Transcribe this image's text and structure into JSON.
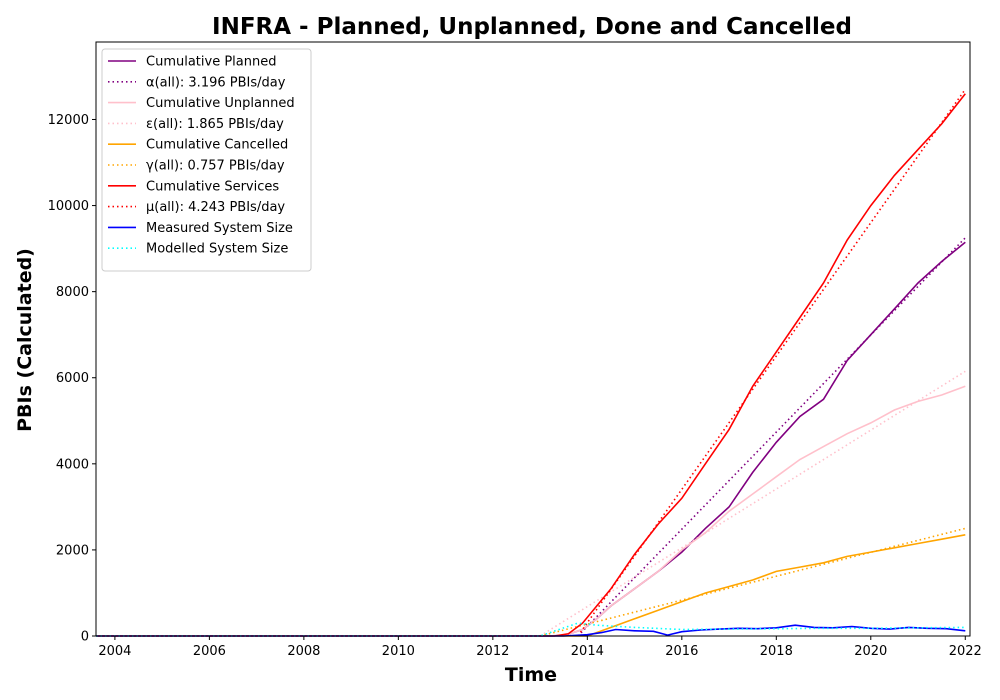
{
  "chart_data": {
    "type": "line",
    "title": "INFRA - Planned, Unplanned, Done  and Cancelled",
    "xlabel": "Time",
    "ylabel": "PBIs (Calculated)",
    "xlim": [
      2003.6,
      2022.1
    ],
    "ylim": [
      0,
      13800
    ],
    "x_ticks": [
      "2004",
      "2006",
      "2008",
      "2010",
      "2012",
      "2014",
      "2016",
      "2018",
      "2020",
      "2022"
    ],
    "y_ticks": [
      "0",
      "2000",
      "4000",
      "6000",
      "8000",
      "10000",
      "12000"
    ],
    "grid": false,
    "legend_position": "upper-left",
    "series": [
      {
        "name": "Cumulative Planned",
        "color": "#800080",
        "style": "solid",
        "x": [
          2003.6,
          2013.0,
          2013.5,
          2013.9,
          2014.2,
          2014.5,
          2015.0,
          2015.5,
          2016.0,
          2016.5,
          2017.0,
          2017.5,
          2018.0,
          2018.5,
          2019.0,
          2019.5,
          2020.0,
          2020.5,
          2021.0,
          2021.5,
          2022.0
        ],
        "y": [
          0,
          0,
          10,
          150,
          400,
          700,
          1100,
          1500,
          1950,
          2500,
          3000,
          3800,
          4500,
          5100,
          5500,
          6400,
          7000,
          7600,
          8200,
          8700,
          9150
        ]
      },
      {
        "name": "α(all): 3.196 PBIs/day",
        "color": "#800080",
        "style": "dotted",
        "x": [
          2013.8,
          2022.0
        ],
        "y": [
          0,
          9250
        ]
      },
      {
        "name": "Cumulative Unplanned",
        "color": "#ffc0cb",
        "style": "solid",
        "x": [
          2003.6,
          2013.0,
          2013.5,
          2013.9,
          2014.2,
          2014.5,
          2015.0,
          2015.5,
          2016.0,
          2016.5,
          2017.0,
          2017.5,
          2018.0,
          2018.5,
          2019.0,
          2019.5,
          2020.0,
          2020.5,
          2021.0,
          2021.5,
          2022.0
        ],
        "y": [
          0,
          0,
          10,
          150,
          400,
          700,
          1100,
          1500,
          2000,
          2400,
          2900,
          3300,
          3700,
          4100,
          4400,
          4700,
          4950,
          5250,
          5450,
          5600,
          5800
        ]
      },
      {
        "name": "ε(all): 1.865 PBIs/day",
        "color": "#ffc0cb",
        "style": "dotted",
        "x": [
          2013.0,
          2022.0
        ],
        "y": [
          0,
          6150
        ]
      },
      {
        "name": "Cumulative Cancelled",
        "color": "#ffa500",
        "style": "solid",
        "x": [
          2003.6,
          2014.0,
          2014.5,
          2015.0,
          2015.5,
          2016.0,
          2016.5,
          2017.0,
          2017.5,
          2018.0,
          2018.5,
          2019.0,
          2019.5,
          2020.0,
          2020.5,
          2021.0,
          2021.5,
          2022.0
        ],
        "y": [
          0,
          0,
          200,
          400,
          600,
          800,
          1000,
          1150,
          1300,
          1500,
          1600,
          1700,
          1850,
          1950,
          2050,
          2150,
          2250,
          2350
        ]
      },
      {
        "name": "γ(all): 0.757 PBIs/day",
        "color": "#ffa500",
        "style": "dotted",
        "x": [
          2013.0,
          2022.0
        ],
        "y": [
          0,
          2500
        ]
      },
      {
        "name": "Cumulative Services",
        "color": "#ff0000",
        "style": "solid",
        "x": [
          2003.6,
          2013.3,
          2013.6,
          2013.9,
          2014.2,
          2014.5,
          2015.0,
          2015.5,
          2016.0,
          2016.5,
          2017.0,
          2017.5,
          2018.0,
          2018.5,
          2019.0,
          2019.5,
          2020.0,
          2020.5,
          2021.0,
          2021.5,
          2022.0
        ],
        "y": [
          0,
          0,
          50,
          300,
          700,
          1100,
          1900,
          2600,
          3200,
          4000,
          4800,
          5800,
          6600,
          7400,
          8200,
          9200,
          10000,
          10700,
          11300,
          11900,
          12600
        ]
      },
      {
        "name": "μ(all): 4.243 PBIs/day",
        "color": "#ff0000",
        "style": "dotted",
        "x": [
          2013.8,
          2022.0
        ],
        "y": [
          0,
          12700
        ]
      },
      {
        "name": "Measured System Size",
        "color": "#0000ff",
        "style": "solid",
        "x": [
          2003.6,
          2013.5,
          2014.0,
          2014.3,
          2014.6,
          2015.0,
          2015.4,
          2015.7,
          2016.0,
          2016.4,
          2016.8,
          2017.2,
          2017.6,
          2018.0,
          2018.4,
          2018.8,
          2019.2,
          2019.6,
          2020.0,
          2020.4,
          2020.8,
          2021.2,
          2021.6,
          2022.0
        ],
        "y": [
          0,
          0,
          30,
          80,
          150,
          120,
          110,
          20,
          100,
          140,
          160,
          180,
          170,
          190,
          250,
          200,
          190,
          220,
          180,
          160,
          200,
          180,
          170,
          120
        ]
      },
      {
        "name": "Modelled System Size",
        "color": "#00ffff",
        "style": "dotted",
        "x": [
          2003.6,
          2013.0,
          2013.4,
          2013.8,
          2014.2,
          2015.0,
          2016.0,
          2017.0,
          2018.0,
          2019.0,
          2020.0,
          2021.0,
          2022.0
        ],
        "y": [
          0,
          0,
          150,
          300,
          250,
          200,
          150,
          160,
          170,
          180,
          180,
          190,
          200
        ]
      }
    ]
  }
}
